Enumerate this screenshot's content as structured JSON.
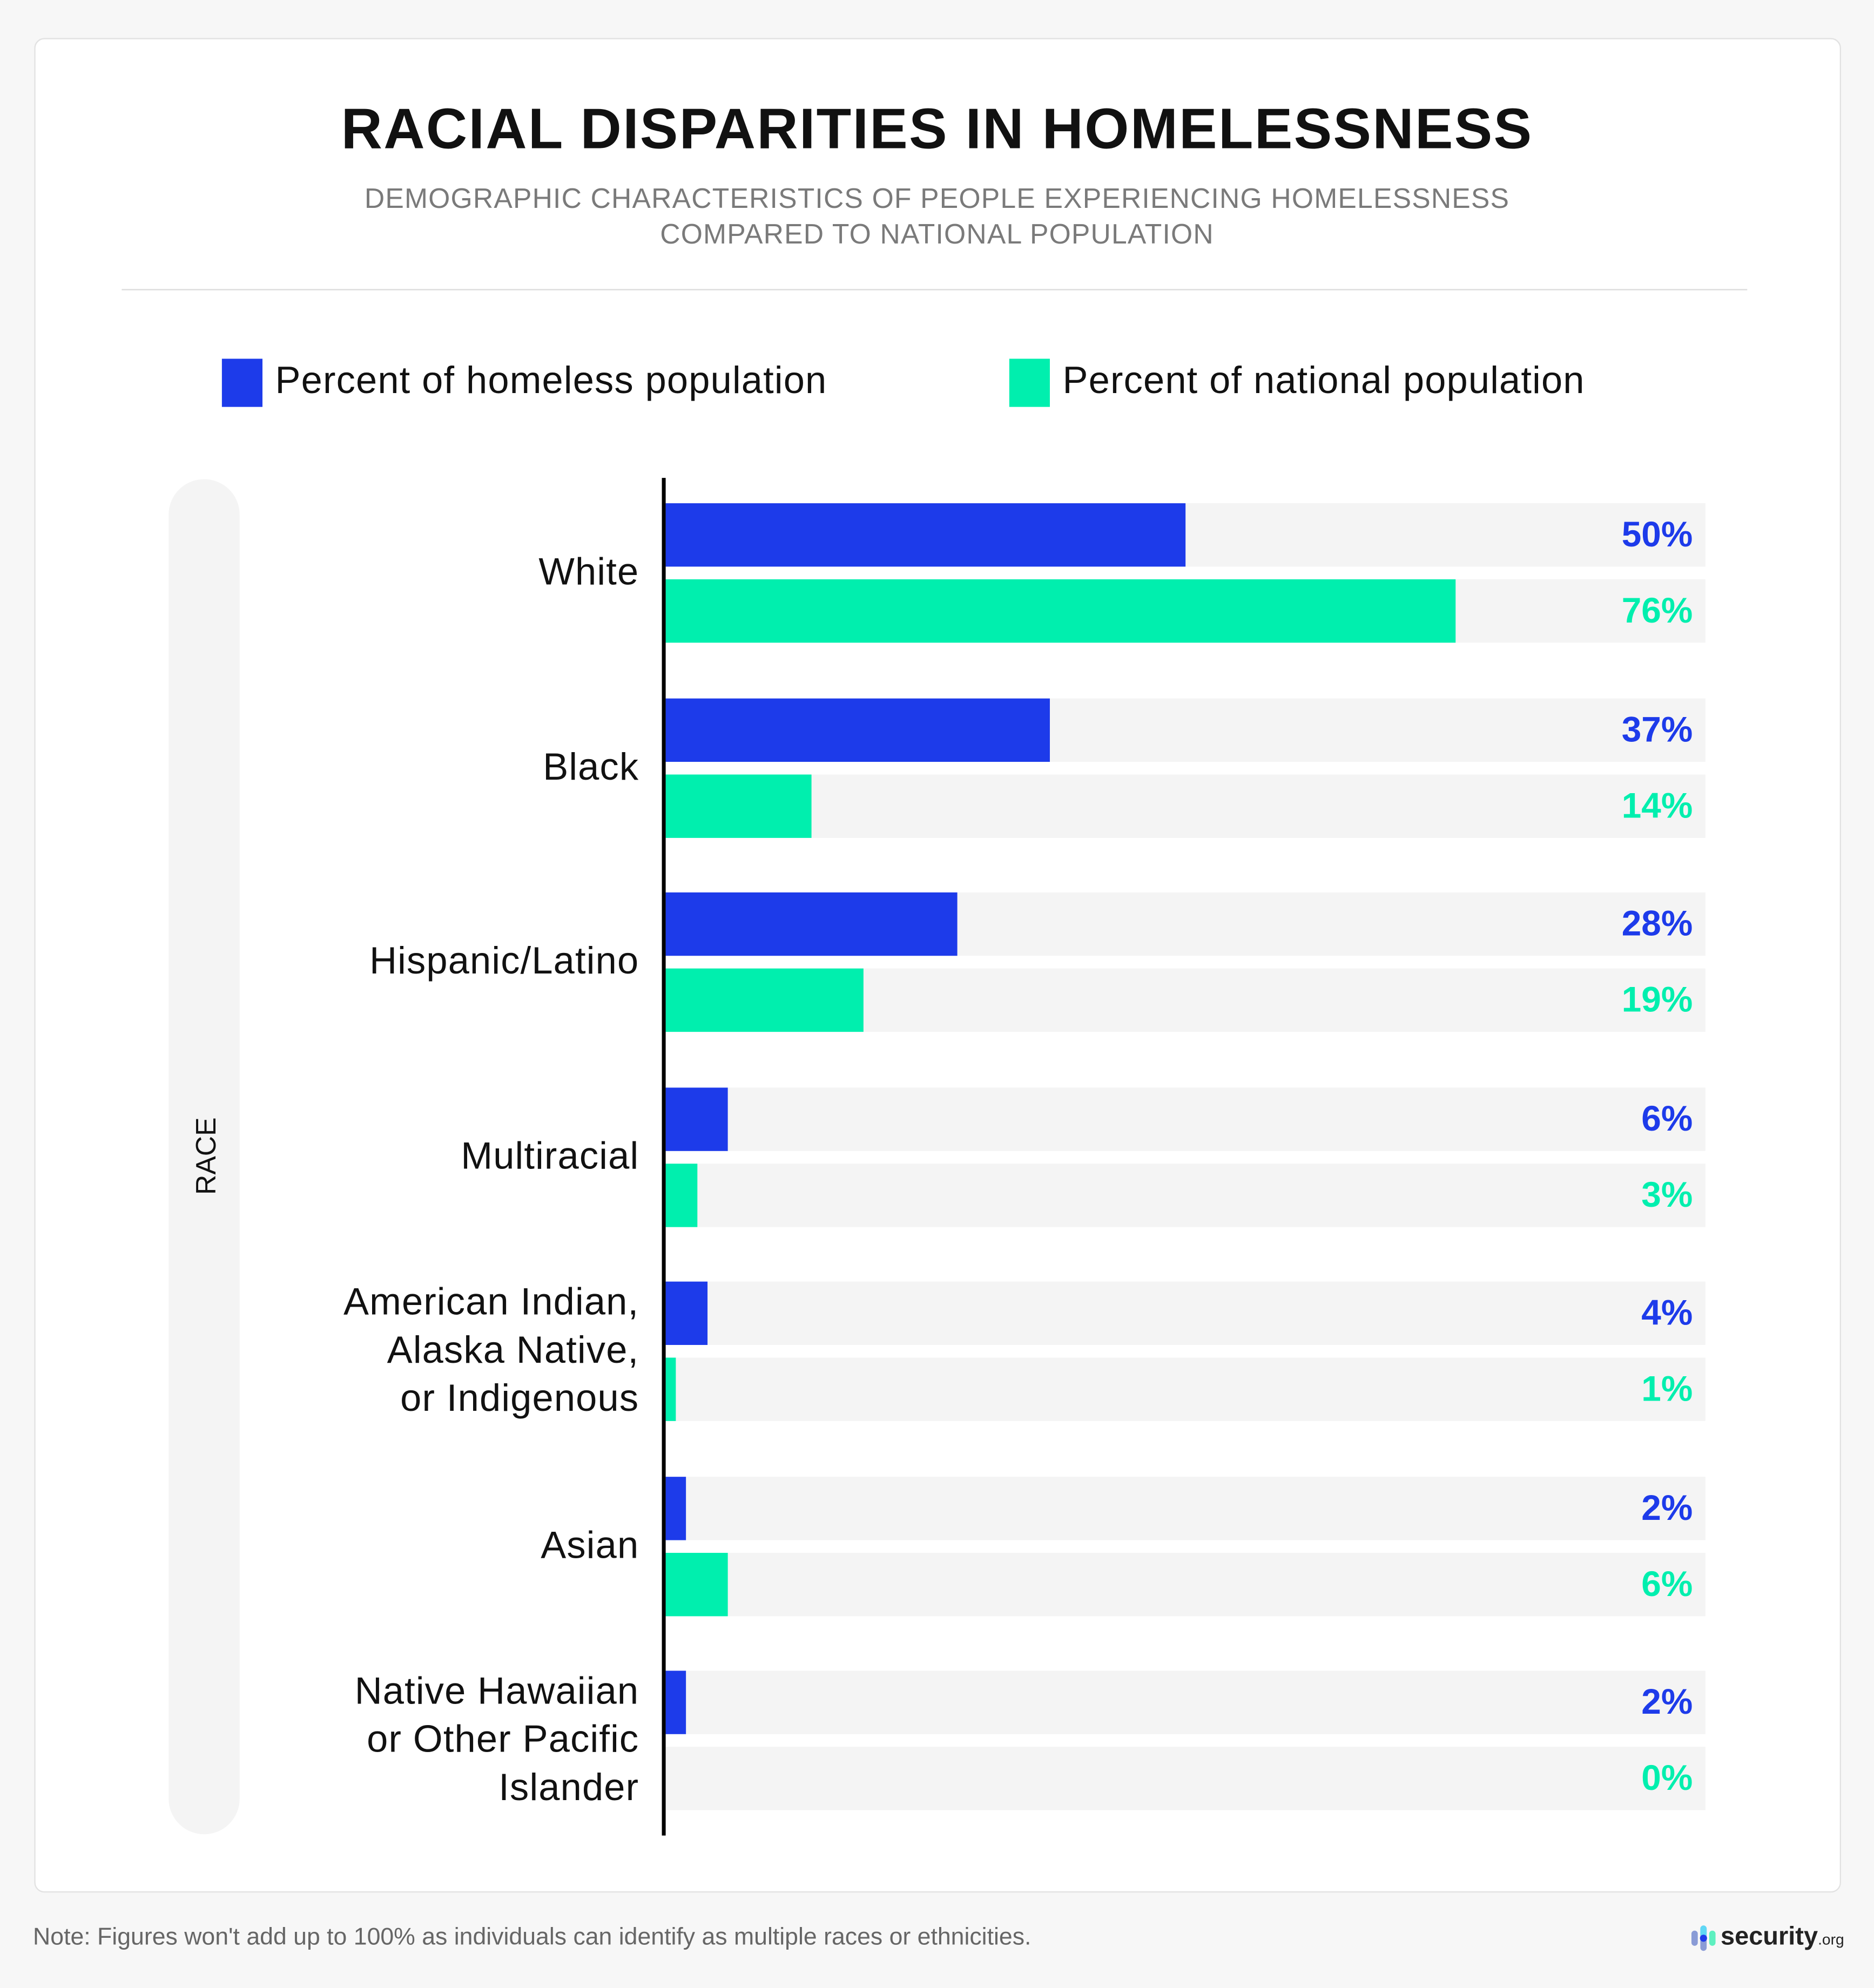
{
  "title": "RACIAL DISPARITIES IN HOMELESSNESS",
  "subtitle_lines": [
    "DEMOGRAPHIC CHARACTERISTICS OF PEOPLE EXPERIENCING HOMELESSNESS",
    "COMPARED TO NATIONAL POPULATION"
  ],
  "note": "Note: Figures won't add up to 100% as individuals can identify as multiple races or ethnicities.",
  "logo_text": "security.org",
  "colors": {
    "homeless": "#1d3bea",
    "national": "#00efae",
    "track": "#f4f4f4"
  },
  "chart_data": {
    "type": "bar",
    "orientation": "horizontal",
    "title": "RACIAL DISPARITIES IN HOMELESSNESS",
    "ylabel": "RACE",
    "xlim": [
      0,
      100
    ],
    "grid": false,
    "legend_position": "top",
    "categories": [
      "White",
      "Black",
      "Hispanic/Latino",
      "Multiracial",
      "American Indian, Alaska Native, or Indigenous",
      "Asian",
      "Native Hawaiian or Other Pacific Islander"
    ],
    "category_lines": [
      [
        "White"
      ],
      [
        "Black"
      ],
      [
        "Hispanic/Latino"
      ],
      [
        "Multiracial"
      ],
      [
        "American Indian,",
        "Alaska Native,",
        "or Indigenous"
      ],
      [
        "Asian"
      ],
      [
        "Native Hawaiian",
        "or Other Pacific",
        "Islander"
      ]
    ],
    "series": [
      {
        "name": "Percent of homeless population",
        "values": [
          50,
          37,
          28,
          6,
          4,
          2,
          2
        ],
        "labels": [
          "50%",
          "37%",
          "28%",
          "6%",
          "4%",
          "2%",
          "2%"
        ]
      },
      {
        "name": "Percent of national population",
        "values": [
          76,
          14,
          19,
          3,
          1,
          6,
          0
        ],
        "labels": [
          "76%",
          "14%",
          "19%",
          "3%",
          "1%",
          "6%",
          "0%"
        ]
      }
    ]
  }
}
